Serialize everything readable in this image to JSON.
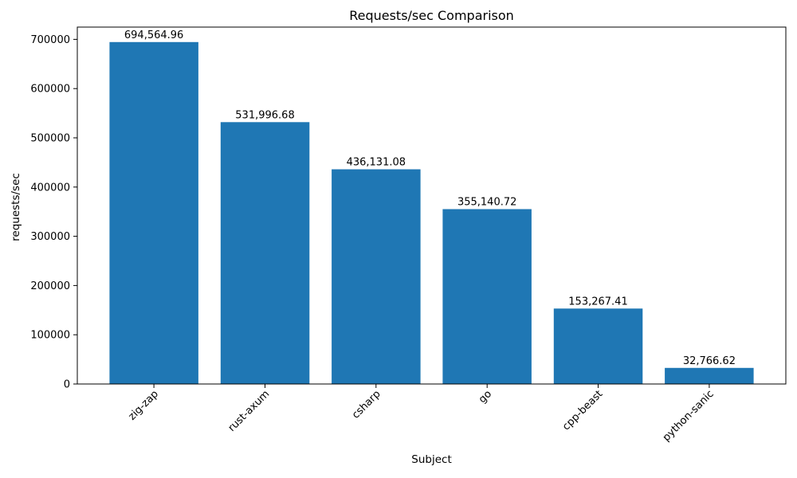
{
  "figure": {
    "background_color": "#ffffff",
    "text_color": "#000000",
    "axes_line_color": "#000000"
  },
  "chart_data": {
    "type": "bar",
    "title": "Requests/sec Comparison",
    "xlabel": "Subject",
    "ylabel": "requests/sec",
    "categories": [
      "zig-zap",
      "rust-axum",
      "csharp",
      "go",
      "cpp-beast",
      "python-sanic"
    ],
    "values": [
      694564.96,
      531996.68,
      436131.08,
      355140.72,
      153267.41,
      32766.62
    ],
    "value_labels": [
      "694,564.96",
      "531,996.68",
      "436,131.08",
      "355,140.72",
      "153,267.41",
      "32,766.62"
    ],
    "yticks": [
      0,
      100000,
      200000,
      300000,
      400000,
      500000,
      600000,
      700000
    ],
    "ytick_labels": [
      "0",
      "100000",
      "200000",
      "300000",
      "400000",
      "500000",
      "600000",
      "700000"
    ],
    "ylim": [
      0,
      725000
    ],
    "xtick_rotation_deg": 45,
    "bar_color": "#1f77b4",
    "grid": false,
    "legend": null
  }
}
